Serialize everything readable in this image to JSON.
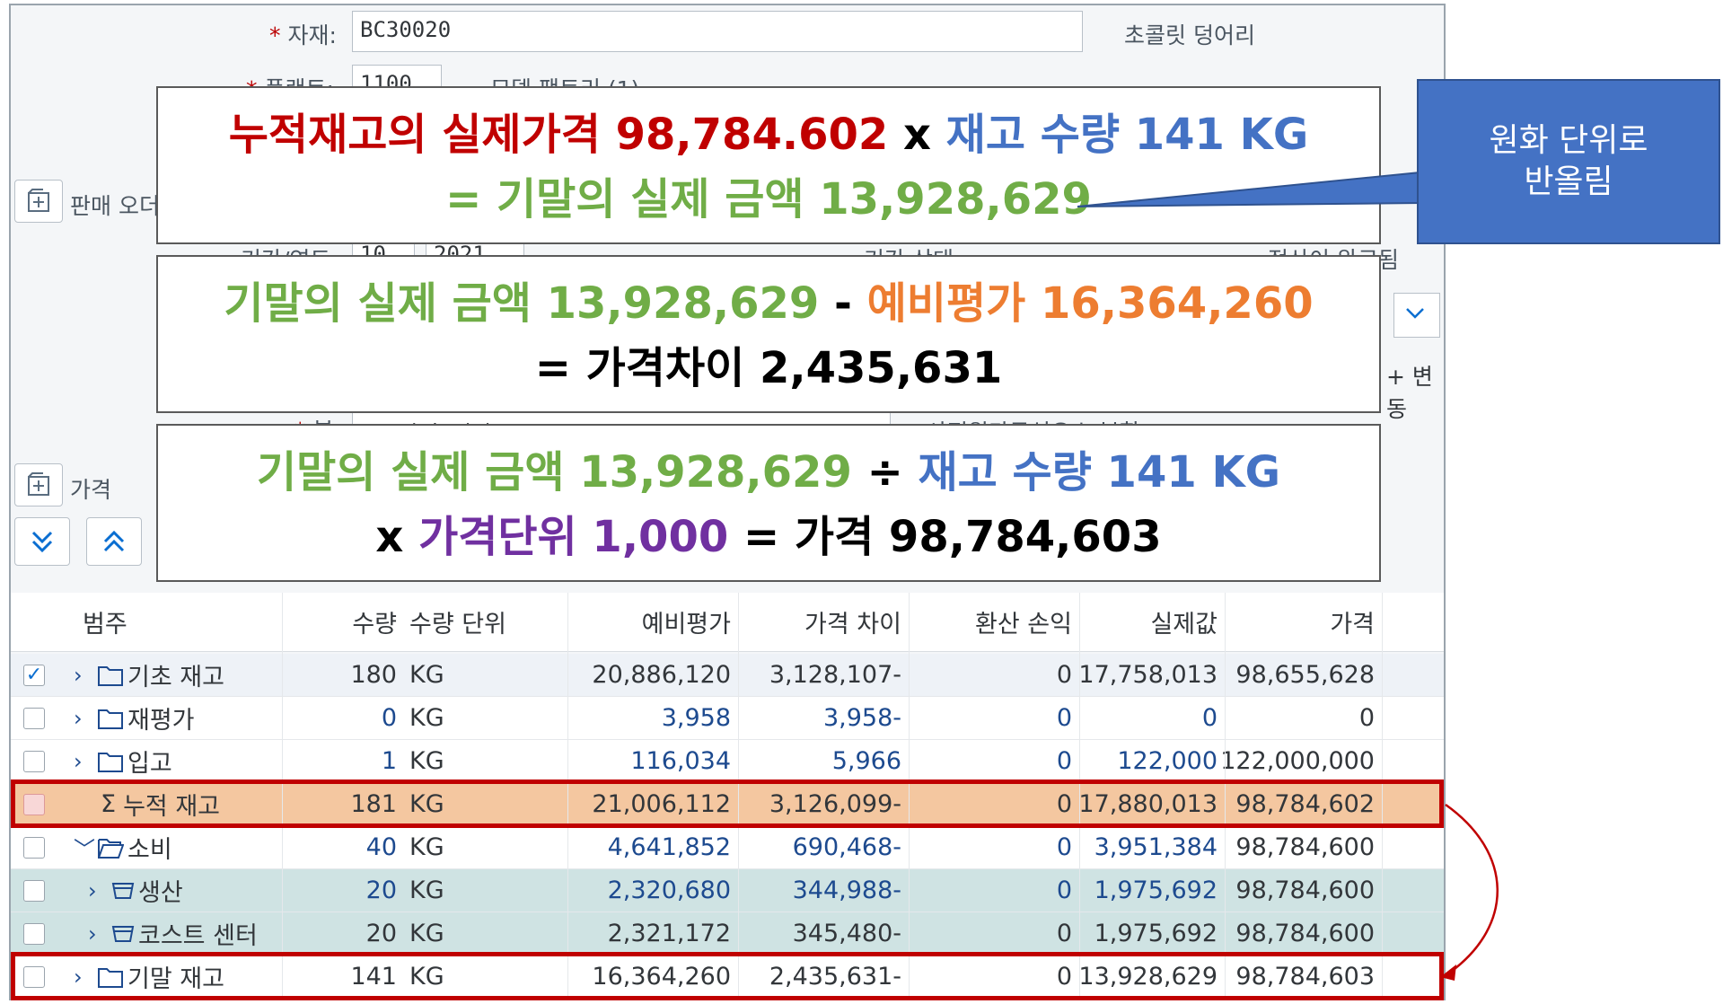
{
  "form": {
    "material_label": "자재:",
    "material_value": "BC30020",
    "material_desc": "초콜릿 덩어리",
    "plant_label": "플랜트:",
    "plant_value": "1100",
    "plant_desc": "모델 팩토리 (1)",
    "sales_order_label": "판매 오더",
    "period_label": "기간/연도:",
    "period_value": "10",
    "year_value": "2021",
    "period_status_label": "기간 상태:",
    "settlement_status": "정산이 완료됨",
    "change_label": "+ 변동",
    "view_label": "뷰:",
    "view_value": "PS 가격 결정 구조",
    "view_desc": "사전원가구성요소 분할",
    "price_section_label": "가격"
  },
  "overlays": {
    "box1": {
      "l1a": "누적재고의 실제가격 98,784.602",
      "l1b": " x ",
      "l1c": "재고 수량 141 KG",
      "l2": "= 기말의 실제 금액 13,928,629"
    },
    "box2": {
      "l1a": "기말의 실제 금액 13,928,629",
      "l1b": " - ",
      "l1c": "예비평가 16,364,260",
      "l2": "= 가격차이 2,435,631"
    },
    "box3": {
      "l1a": "기말의 실제 금액 13,928,629",
      "l1b": " ÷ ",
      "l1c": "재고 수량 141 KG",
      "l2a": "x ",
      "l2b": "가격단위 1,000",
      "l2c": " = 가격 98,784,603"
    }
  },
  "callout": {
    "line1": "원화 단위로",
    "line2": "반올림"
  },
  "table": {
    "headers": {
      "category": "범주",
      "qty": "수량",
      "unit": "수량 단위",
      "prelim": "예비평가",
      "diff": "가격 차이",
      "fx": "환산 손익",
      "actual": "실제값",
      "price": "가격"
    },
    "rows": [
      {
        "name": "기초 재고",
        "qty": "180",
        "unit": "KG",
        "prelim": "20,886,120",
        "diff": "3,128,107-",
        "fx": "0",
        "actual": "17,758,013",
        "price": "98,655,628"
      },
      {
        "name": "재평가",
        "qty": "0",
        "unit": "KG",
        "prelim": "3,958",
        "diff": "3,958-",
        "fx": "0",
        "actual": "0",
        "price": "0"
      },
      {
        "name": "입고",
        "qty": "1",
        "unit": "KG",
        "prelim": "116,034",
        "diff": "5,966",
        "fx": "0",
        "actual": "122,000",
        "price": "122,000,000"
      },
      {
        "name": "누적 재고",
        "qty": "181",
        "unit": "KG",
        "prelim": "21,006,112",
        "diff": "3,126,099-",
        "fx": "0",
        "actual": "17,880,013",
        "price": "98,784,602"
      },
      {
        "name": "소비",
        "qty": "40",
        "unit": "KG",
        "prelim": "4,641,852",
        "diff": "690,468-",
        "fx": "0",
        "actual": "3,951,384",
        "price": "98,784,600"
      },
      {
        "name": "생산",
        "qty": "20",
        "unit": "KG",
        "prelim": "2,320,680",
        "diff": "344,988-",
        "fx": "0",
        "actual": "1,975,692",
        "price": "98,784,600"
      },
      {
        "name": "코스트 센터",
        "qty": "20",
        "unit": "KG",
        "prelim": "2,321,172",
        "diff": "345,480-",
        "fx": "0",
        "actual": "1,975,692",
        "price": "98,784,600"
      },
      {
        "name": "기말 재고",
        "qty": "141",
        "unit": "KG",
        "prelim": "16,364,260",
        "diff": "2,435,631-",
        "fx": "0",
        "actual": "13,928,629",
        "price": "98,784,603"
      }
    ],
    "sigma": "Σ"
  },
  "colors": {
    "red": "#c00000",
    "blue": "#4472c4",
    "green": "#70ad47",
    "orange": "#ed7d31",
    "purple": "#7030a0",
    "highlight_row": "#f4c7a0",
    "teal_row": "#cfe3e3"
  }
}
